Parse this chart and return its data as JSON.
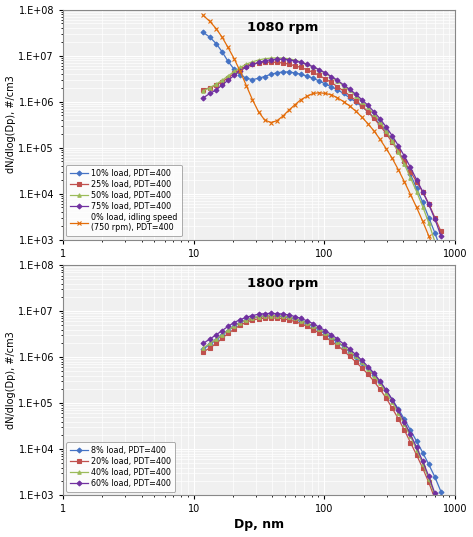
{
  "title1": "1080 rpm",
  "title2": "1800 rpm",
  "xlabel": "Dp, nm",
  "ylabel": "dN/dlog(Dp), #/cm3",
  "xlim": [
    1,
    1000
  ],
  "ylim": [
    1000.0,
    100000000.0
  ],
  "bg_color": "#f0f0f0",
  "grid_color": "#ffffff",
  "series1": [
    {
      "label": "10% load, PDT=400",
      "color": "#4472C4",
      "marker": "D",
      "markersize": 2.5,
      "dp": [
        11.8,
        13.3,
        14.9,
        16.5,
        18.3,
        20.4,
        22.7,
        25.3,
        28.1,
        31.3,
        34.8,
        38.8,
        43.1,
        48.0,
        53.4,
        59.4,
        66.1,
        73.6,
        81.9,
        91.2,
        101.5,
        113.0,
        125.8,
        140.0,
        155.8,
        173.4,
        193.1,
        214.9,
        239.2,
        266.3,
        296.4,
        330.0,
        367.3,
        408.8,
        455.0,
        506.5,
        563.9,
        627.6,
        698.7,
        777.9
      ],
      "dndlog": [
        32000000.0,
        25000000.0,
        18000000.0,
        12000000.0,
        7500000.0,
        5000000.0,
        3800000.0,
        3200000.0,
        3000000.0,
        3200000.0,
        3500000.0,
        3900000.0,
        4200000.0,
        4400000.0,
        4400000.0,
        4200000.0,
        3900000.0,
        3600000.0,
        3200000.0,
        2800000.0,
        2400000.0,
        2100000.0,
        1800000.0,
        1500000.0,
        1200000.0,
        980000.0,
        780000.0,
        600000.0,
        450000.0,
        320000.0,
        220000.0,
        140000.0,
        85000.0,
        48000.0,
        26000.0,
        13000.0,
        6500.0,
        3000.0,
        1400.0,
        600.0
      ]
    },
    {
      "label": "25% load, PDT=400",
      "color": "#C0504D",
      "marker": "s",
      "markersize": 2.5,
      "dp": [
        11.8,
        13.3,
        14.9,
        16.5,
        18.3,
        20.4,
        22.7,
        25.3,
        28.1,
        31.3,
        34.8,
        38.8,
        43.1,
        48.0,
        53.4,
        59.4,
        66.1,
        73.6,
        81.9,
        91.2,
        101.5,
        113.0,
        125.8,
        140.0,
        155.8,
        173.4,
        193.1,
        214.9,
        239.2,
        266.3,
        296.4,
        330.0,
        367.3,
        408.8,
        455.0,
        506.5,
        563.9,
        627.6,
        698.7,
        777.9
      ],
      "dndlog": [
        1800000.0,
        2000000.0,
        2300000.0,
        2700000.0,
        3300000.0,
        4100000.0,
        5000000.0,
        5900000.0,
        6500000.0,
        6900000.0,
        7100000.0,
        7200000.0,
        7100000.0,
        6900000.0,
        6500000.0,
        6000000.0,
        5500000.0,
        4900000.0,
        4300000.0,
        3700000.0,
        3100000.0,
        2600000.0,
        2100000.0,
        1700000.0,
        1350000.0,
        1050000.0,
        800000.0,
        600000.0,
        430000.0,
        300000.0,
        200000.0,
        130000.0,
        82000.0,
        50000.0,
        30000.0,
        18000.0,
        11000.0,
        6000.0,
        3000.0,
        1500.0
      ]
    },
    {
      "label": "50% load, PDT=400",
      "color": "#9BBB59",
      "marker": "^",
      "markersize": 2.5,
      "dp": [
        11.8,
        13.3,
        14.9,
        16.5,
        18.3,
        20.4,
        22.7,
        25.3,
        28.1,
        31.3,
        34.8,
        38.8,
        43.1,
        48.0,
        53.4,
        59.4,
        66.1,
        73.6,
        81.9,
        91.2,
        101.5,
        113.0,
        125.8,
        140.0,
        155.8,
        173.4,
        193.1,
        214.9,
        239.2,
        266.3,
        296.4,
        330.0,
        367.3,
        408.8,
        455.0,
        506.5,
        563.9,
        627.6,
        698.7,
        777.9
      ],
      "dndlog": [
        1700000.0,
        2000000.0,
        2400000.0,
        2900000.0,
        3600000.0,
        4500000.0,
        5500000.0,
        6500000.0,
        7300000.0,
        8000000.0,
        8500000.0,
        8800000.0,
        8900000.0,
        8800000.0,
        8500000.0,
        8000000.0,
        7300000.0,
        6500000.0,
        5700000.0,
        4900000.0,
        4100000.0,
        3400000.0,
        2800000.0,
        2200000.0,
        1750000.0,
        1350000.0,
        1000000.0,
        750000.0,
        530000.0,
        360000.0,
        230000.0,
        140000.0,
        80000.0,
        43000.0,
        22000.0,
        11000.0,
        5200.0,
        2300.0,
        900.0,
        350.0
      ]
    },
    {
      "label": "75% load, PDT=400",
      "color": "#7030A0",
      "marker": "D",
      "markersize": 2.5,
      "dp": [
        11.8,
        13.3,
        14.9,
        16.5,
        18.3,
        20.4,
        22.7,
        25.3,
        28.1,
        31.3,
        34.8,
        38.8,
        43.1,
        48.0,
        53.4,
        59.4,
        66.1,
        73.6,
        81.9,
        91.2,
        101.5,
        113.0,
        125.8,
        140.0,
        155.8,
        173.4,
        193.1,
        214.9,
        239.2,
        266.3,
        296.4,
        330.0,
        367.3,
        408.8,
        455.0,
        506.5,
        563.9,
        627.6,
        698.7,
        777.9
      ],
      "dndlog": [
        1200000.0,
        1500000.0,
        1800000.0,
        2300000.0,
        2900000.0,
        3700000.0,
        4700000.0,
        5600000.0,
        6400000.0,
        7100000.0,
        7700000.0,
        8100000.0,
        8300000.0,
        8300000.0,
        8100000.0,
        7700000.0,
        7100000.0,
        6400000.0,
        5700000.0,
        4900000.0,
        4200000.0,
        3500000.0,
        2900000.0,
        2300000.0,
        1850000.0,
        1450000.0,
        1100000.0,
        830000.0,
        600000.0,
        420000.0,
        280000.0,
        180000.0,
        110000.0,
        65000.0,
        37000.0,
        20000.0,
        11000.0,
        5800.0,
        2800.0,
        1200.0
      ]
    },
    {
      "label": "0% load, idling speed\n(750 rpm), PDT=400",
      "color": "#E36C09",
      "marker": "x",
      "markersize": 3.5,
      "dp": [
        11.8,
        13.3,
        14.9,
        16.5,
        18.3,
        20.4,
        22.7,
        25.3,
        28.1,
        31.3,
        34.8,
        38.8,
        43.1,
        48.0,
        53.4,
        59.4,
        66.1,
        73.6,
        81.9,
        91.2,
        101.5,
        113.0,
        125.8,
        140.0,
        155.8,
        173.4,
        193.1,
        214.9,
        239.2,
        266.3,
        296.4,
        330.0,
        367.3,
        408.8,
        455.0,
        506.5,
        563.9,
        627.6,
        698.7,
        777.9
      ],
      "dndlog": [
        75000000.0,
        55000000.0,
        38000000.0,
        25000000.0,
        15000000.0,
        8500000.0,
        4500000.0,
        2200000.0,
        1100000.0,
        600000.0,
        400000.0,
        350000.0,
        380000.0,
        480000.0,
        650000.0,
        850000.0,
        1100000.0,
        1300000.0,
        1500000.0,
        1550000.0,
        1500000.0,
        1400000.0,
        1200000.0,
        1000000.0,
        800000.0,
        620000.0,
        460000.0,
        330000.0,
        230000.0,
        150000.0,
        95000.0,
        58000.0,
        33000.0,
        18000.0,
        9500.0,
        5000.0,
        2500.0,
        1200.0,
        550.0,
        250.0
      ]
    }
  ],
  "series2": [
    {
      "label": "8% load, PDT=400",
      "color": "#4472C4",
      "marker": "D",
      "markersize": 2.5,
      "dp": [
        11.8,
        13.3,
        14.9,
        16.5,
        18.3,
        20.4,
        22.7,
        25.3,
        28.1,
        31.3,
        34.8,
        38.8,
        43.1,
        48.0,
        53.4,
        59.4,
        66.1,
        73.6,
        81.9,
        91.2,
        101.5,
        113.0,
        125.8,
        140.0,
        155.8,
        173.4,
        193.1,
        214.9,
        239.2,
        266.3,
        296.4,
        330.0,
        367.3,
        408.8,
        455.0,
        506.5,
        563.9,
        627.6,
        698.7,
        777.9
      ],
      "dndlog": [
        1500000.0,
        1900000.0,
        2400000.0,
        3000000.0,
        3800000.0,
        4700000.0,
        5600000.0,
        6400000.0,
        7100000.0,
        7600000.0,
        7900000.0,
        8000000.0,
        7900000.0,
        7700000.0,
        7300000.0,
        6700000.0,
        6000000.0,
        5300000.0,
        4600000.0,
        3900000.0,
        3200000.0,
        2600000.0,
        2100000.0,
        1700000.0,
        1300000.0,
        1000000.0,
        770000.0,
        580000.0,
        420000.0,
        290000.0,
        190000.0,
        120000.0,
        75000.0,
        45000.0,
        26000.0,
        15000.0,
        8500.0,
        4700.0,
        2500.0,
        1200.0
      ]
    },
    {
      "label": "20% load, PDT=400",
      "color": "#C0504D",
      "marker": "s",
      "markersize": 2.5,
      "dp": [
        11.8,
        13.3,
        14.9,
        16.5,
        18.3,
        20.4,
        22.7,
        25.3,
        28.1,
        31.3,
        34.8,
        38.8,
        43.1,
        48.0,
        53.4,
        59.4,
        66.1,
        73.6,
        81.9,
        91.2,
        101.5,
        113.0,
        125.8,
        140.0,
        155.8,
        173.4,
        193.1,
        214.9,
        239.2,
        266.3,
        296.4,
        330.0,
        367.3,
        408.8,
        455.0,
        506.5,
        563.9,
        627.6,
        698.7,
        777.9
      ],
      "dndlog": [
        1300000.0,
        1600000.0,
        2000000.0,
        2600000.0,
        3300000.0,
        4100000.0,
        5000000.0,
        5800000.0,
        6400000.0,
        6900000.0,
        7100000.0,
        7200000.0,
        7100000.0,
        6900000.0,
        6500000.0,
        6000000.0,
        5400000.0,
        4700000.0,
        4000000.0,
        3400000.0,
        2800000.0,
        2200000.0,
        1800000.0,
        1400000.0,
        1050000.0,
        800000.0,
        590000.0,
        430000.0,
        300000.0,
        200000.0,
        130000.0,
        78000.0,
        46000.0,
        26000.0,
        14000.0,
        7500.0,
        3900.0,
        1900.0,
        850.0,
        350.0
      ]
    },
    {
      "label": "40% load, PDT=400",
      "color": "#9BBB59",
      "marker": "^",
      "markersize": 2.5,
      "dp": [
        11.8,
        13.3,
        14.9,
        16.5,
        18.3,
        20.4,
        22.7,
        25.3,
        28.1,
        31.3,
        34.8,
        38.8,
        43.1,
        48.0,
        53.4,
        59.4,
        66.1,
        73.6,
        81.9,
        91.2,
        101.5,
        113.0,
        125.8,
        140.0,
        155.8,
        173.4,
        193.1,
        214.9,
        239.2,
        266.3,
        296.4,
        330.0,
        367.3,
        408.8,
        455.0,
        506.5,
        563.9,
        627.6,
        698.7,
        777.9
      ],
      "dndlog": [
        1600000.0,
        2000000.0,
        2500000.0,
        3100000.0,
        3900000.0,
        4800000.0,
        5700000.0,
        6500000.0,
        7200000.0,
        7700000.0,
        8000000.0,
        8100000.0,
        8100000.0,
        7900000.0,
        7500000.0,
        7000000.0,
        6300000.0,
        5600000.0,
        4800000.0,
        4100000.0,
        3400000.0,
        2800000.0,
        2200000.0,
        1750000.0,
        1350000.0,
        1050000.0,
        780000.0,
        570000.0,
        400000.0,
        270000.0,
        170000.0,
        105000.0,
        62000.0,
        35000.0,
        19000.0,
        9800.0,
        4900.0,
        2300.0,
        1000.0,
        380.0
      ]
    },
    {
      "label": "60% load, PDT=400",
      "color": "#7030A0",
      "marker": "D",
      "markersize": 2.5,
      "dp": [
        11.8,
        13.3,
        14.9,
        16.5,
        18.3,
        20.4,
        22.7,
        25.3,
        28.1,
        31.3,
        34.8,
        38.8,
        43.1,
        48.0,
        53.4,
        59.4,
        66.1,
        73.6,
        81.9,
        91.2,
        101.5,
        113.0,
        125.8,
        140.0,
        155.8,
        173.4,
        193.1,
        214.9,
        239.2,
        266.3,
        296.4,
        330.0,
        367.3,
        408.8,
        455.0,
        506.5,
        563.9,
        627.6,
        698.7,
        777.9
      ],
      "dndlog": [
        2000000.0,
        2500000.0,
        3100000.0,
        3800000.0,
        4700000.0,
        5700000.0,
        6600000.0,
        7400000.0,
        8100000.0,
        8600000.0,
        8900000.0,
        9000000.0,
        8900000.0,
        8700000.0,
        8300000.0,
        7700000.0,
        7000000.0,
        6200000.0,
        5400000.0,
        4500000.0,
        3800000.0,
        3100000.0,
        2500000.0,
        1950000.0,
        1500000.0,
        1150000.0,
        860000.0,
        630000.0,
        450000.0,
        300000.0,
        195000.0,
        120000.0,
        70000.0,
        39000.0,
        21000.0,
        11000.0,
        5500.0,
        2600.0,
        1100.0,
        400.0
      ]
    }
  ]
}
